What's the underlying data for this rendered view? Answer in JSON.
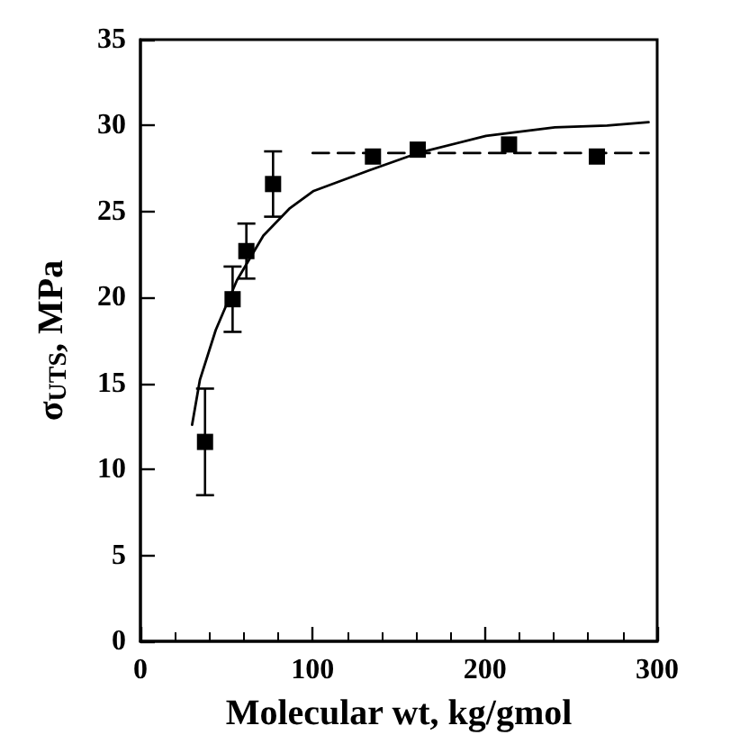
{
  "chart_data": {
    "type": "scatter",
    "xlabel": "Molecular wt, kg/gmol",
    "ylabel": "σ$_{UTS}$, MPa",
    "xlim": [
      0,
      300
    ],
    "xticks": [
      0,
      100,
      200,
      300
    ],
    "ylim": [
      0,
      35
    ],
    "yticks": [
      0,
      5,
      10,
      15,
      20,
      25,
      30,
      35
    ],
    "grid": false,
    "series": [
      {
        "color": "#000000",
        "marker": "square",
        "x": [
          37.5,
          53.5,
          61.5,
          77,
          135,
          161,
          214,
          265
        ],
        "values": [
          11.6,
          19.9,
          22.7,
          26.6,
          28.2,
          28.6,
          28.9,
          28.2
        ],
        "errors": [
          3.1,
          1.9,
          1.6,
          1.9,
          null,
          null,
          null,
          null
        ]
      },
      {
        "type": "line",
        "color": "#000000",
        "marker": "none",
        "line_style": "solid",
        "x": [
          30,
          34.5,
          43.7,
          56,
          71.4,
          86.8,
          100.6,
          133,
          161,
          200.6,
          240.6,
          271,
          295
        ],
        "values": [
          12.6,
          15.2,
          18.1,
          21,
          23.6,
          25.2,
          26.2,
          27.4,
          28.4,
          29.4,
          29.9,
          30,
          30.2
        ]
      },
      {
        "type": "line",
        "color": "#000000",
        "marker": "none",
        "line_style": "dashed",
        "x": [
          100,
          295
        ],
        "values": [
          28.4,
          28.4
        ]
      }
    ]
  }
}
